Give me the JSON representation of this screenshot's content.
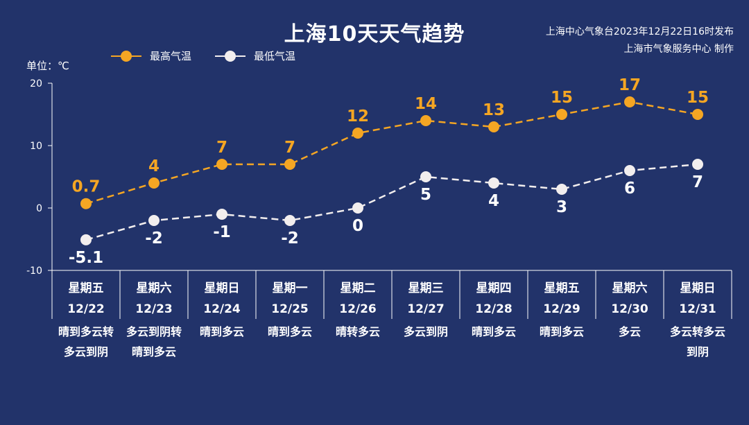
{
  "title": "上海10天天气趋势",
  "source_line1": "上海中心气象台2023年12月22日16时发布",
  "source_line2": "上海市气象服务中心 制作",
  "unit_label": "单位：℃",
  "colors": {
    "high": "#f5a623",
    "low": "#f2eeee",
    "axis": "#ffffff",
    "background": "#22336a"
  },
  "chart_data": {
    "type": "line",
    "title": "上海10天天气趋势",
    "ylabel": "单位：℃",
    "ylim": [
      -10,
      20
    ],
    "yticks": [
      20,
      10,
      0,
      -10
    ],
    "legend": "top-left",
    "categories": [
      {
        "weekday": "星期五",
        "date": "12/22",
        "weather": [
          "晴到多云转",
          "多云到阴"
        ]
      },
      {
        "weekday": "星期六",
        "date": "12/23",
        "weather": [
          "多云到阴转",
          "晴到多云"
        ]
      },
      {
        "weekday": "星期日",
        "date": "12/24",
        "weather": [
          "晴到多云"
        ]
      },
      {
        "weekday": "星期一",
        "date": "12/25",
        "weather": [
          "晴到多云"
        ]
      },
      {
        "weekday": "星期二",
        "date": "12/26",
        "weather": [
          "晴转多云"
        ]
      },
      {
        "weekday": "星期三",
        "date": "12/27",
        "weather": [
          "多云到阴"
        ]
      },
      {
        "weekday": "星期四",
        "date": "12/28",
        "weather": [
          "晴到多云"
        ]
      },
      {
        "weekday": "星期五",
        "date": "12/29",
        "weather": [
          "晴到多云"
        ]
      },
      {
        "weekday": "星期六",
        "date": "12/30",
        "weather": [
          "多云"
        ]
      },
      {
        "weekday": "星期日",
        "date": "12/31",
        "weather": [
          "多云转多云",
          "到阴"
        ]
      }
    ],
    "series": [
      {
        "name": "最高气温",
        "values": [
          0.7,
          4,
          7,
          7,
          12,
          14,
          13,
          15,
          17,
          15
        ],
        "labels": [
          "0.7",
          "4",
          "7",
          "7",
          "12",
          "14",
          "13",
          "15",
          "17",
          "15"
        ]
      },
      {
        "name": "最低气温",
        "values": [
          -5.1,
          -2,
          -1,
          -2,
          0,
          5,
          4,
          3,
          6,
          7
        ],
        "labels": [
          "-5.1",
          "-2",
          "-1",
          "-2",
          "0",
          "5",
          "4",
          "3",
          "6",
          "7"
        ]
      }
    ]
  }
}
